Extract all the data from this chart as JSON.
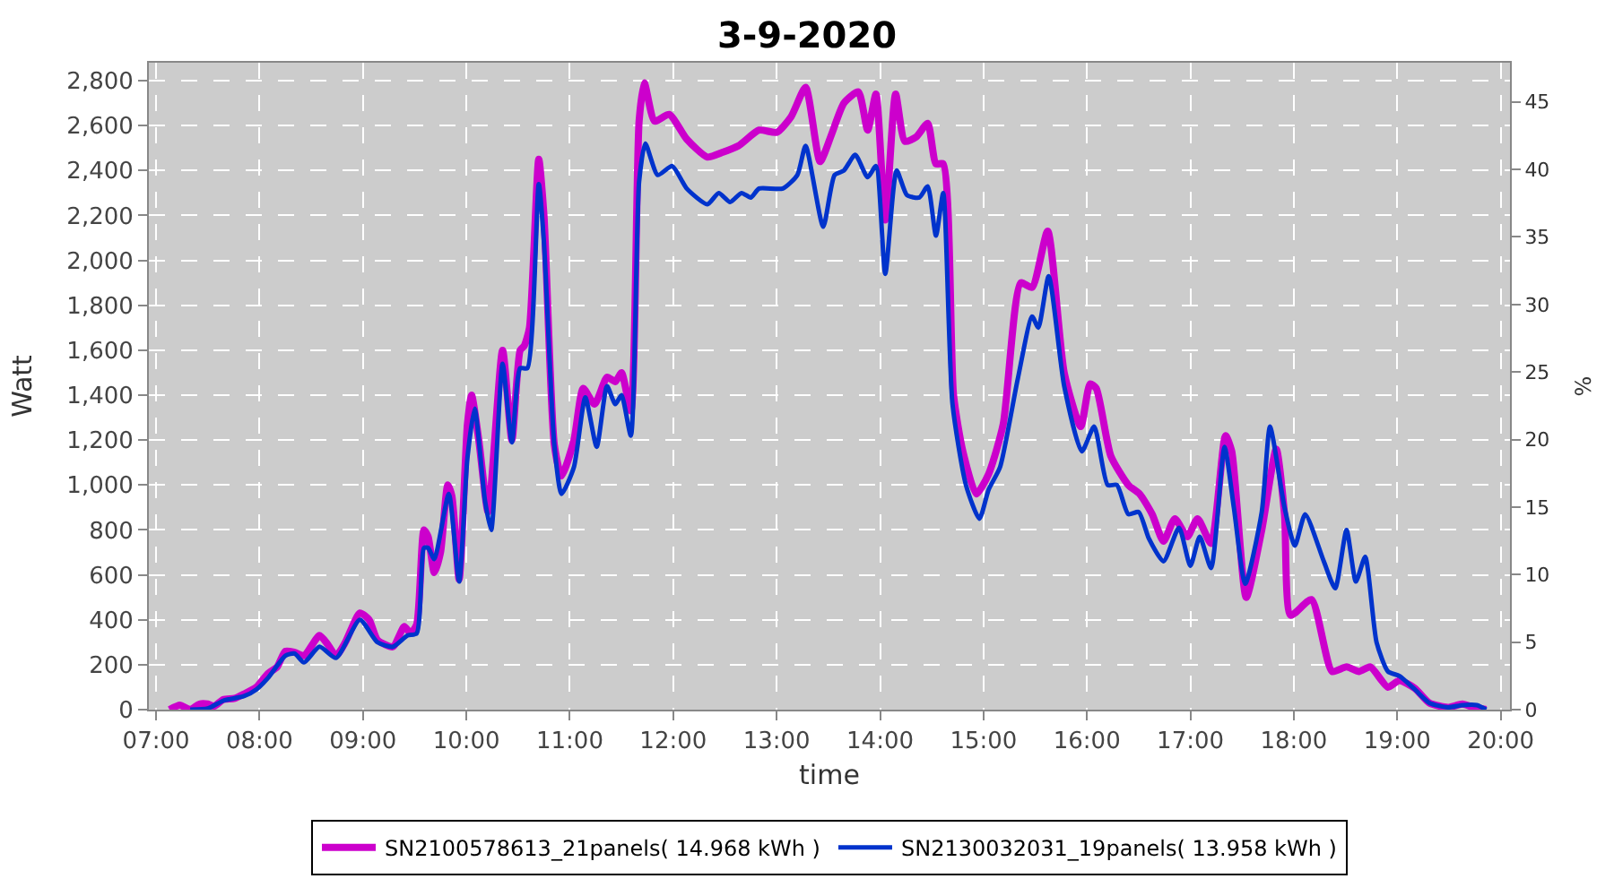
{
  "chart_data": {
    "type": "line",
    "title": "3-9-2020",
    "xlabel": "time",
    "ylabel": "Watt",
    "y2label": "%",
    "xlim": [
      6.93,
      20.09
    ],
    "xticks": [
      {
        "value": 7,
        "label": "07:00"
      },
      {
        "value": 8,
        "label": "08:00"
      },
      {
        "value": 9,
        "label": "09:00"
      },
      {
        "value": 10,
        "label": "10:00"
      },
      {
        "value": 11,
        "label": "11:00"
      },
      {
        "value": 12,
        "label": "12:00"
      },
      {
        "value": 13,
        "label": "13:00"
      },
      {
        "value": 14,
        "label": "14:00"
      },
      {
        "value": 15,
        "label": "15:00"
      },
      {
        "value": 16,
        "label": "16:00"
      },
      {
        "value": 17,
        "label": "17:00"
      },
      {
        "value": 18,
        "label": "18:00"
      },
      {
        "value": 19,
        "label": "19:00"
      },
      {
        "value": 20,
        "label": "20:00"
      }
    ],
    "ylim": [
      0,
      2880
    ],
    "yticks": [
      0,
      200,
      400,
      600,
      800,
      {
        "value": 1000,
        "label": "1,000"
      },
      {
        "value": 1200,
        "label": "1,200"
      },
      {
        "value": 1400,
        "label": "1,400"
      },
      {
        "value": 1600,
        "label": "1,600"
      },
      {
        "value": 1800,
        "label": "1,800"
      },
      {
        "value": 2000,
        "label": "2,000"
      },
      {
        "value": 2200,
        "label": "2,200"
      },
      {
        "value": 2400,
        "label": "2,400"
      },
      {
        "value": 2600,
        "label": "2,600"
      },
      {
        "value": 2800,
        "label": "2,800"
      }
    ],
    "y2lim": [
      0,
      47.9
    ],
    "y2ticks": [
      0,
      5,
      10,
      15,
      20,
      25,
      30,
      35,
      40,
      45
    ],
    "grid": true,
    "legend": "bottom",
    "line_style": "solid",
    "series": [
      {
        "name": "SN2100578613_21panels( 14.968 kWh )",
        "color": "#cc00cc",
        "x": [
          7.13,
          7.23,
          7.33,
          7.42,
          7.5,
          7.56,
          7.65,
          7.76,
          7.85,
          7.97,
          8.08,
          8.17,
          8.25,
          8.34,
          8.43,
          8.58,
          8.66,
          8.74,
          8.83,
          8.97,
          9.06,
          9.14,
          9.29,
          9.4,
          9.46,
          9.52,
          9.59,
          9.63,
          9.69,
          9.75,
          9.82,
          9.86,
          9.93,
          10.01,
          10.05,
          10.12,
          10.21,
          10.35,
          10.44,
          10.52,
          10.56,
          10.61,
          10.7,
          10.75,
          10.85,
          10.92,
          11.04,
          11.13,
          11.24,
          11.36,
          11.44,
          11.5,
          11.59,
          11.67,
          11.72,
          11.82,
          11.96,
          12.13,
          12.33,
          12.47,
          12.63,
          12.83,
          13.0,
          13.14,
          13.28,
          13.42,
          13.53,
          13.65,
          13.79,
          13.88,
          13.96,
          14.05,
          14.15,
          14.24,
          14.35,
          14.46,
          14.54,
          14.61,
          14.71,
          14.8,
          14.93,
          15.05,
          15.19,
          15.36,
          15.47,
          15.62,
          15.78,
          15.94,
          16.03,
          16.09,
          16.23,
          16.4,
          16.51,
          16.63,
          16.74,
          16.85,
          16.97,
          17.07,
          17.2,
          17.34,
          17.4,
          17.54,
          17.69,
          17.83,
          17.91,
          17.97,
          18.17,
          18.37,
          18.51,
          18.63,
          18.74,
          18.91,
          19.02,
          19.17,
          19.31,
          19.49,
          19.63,
          19.74,
          19.86
        ],
        "values": [
          0,
          20,
          0,
          25,
          25,
          15,
          45,
          50,
          70,
          100,
          160,
          190,
          260,
          255,
          240,
          330,
          290,
          240,
          300,
          430,
          400,
          310,
          280,
          370,
          340,
          380,
          800,
          770,
          610,
          700,
          1000,
          950,
          580,
          1270,
          1400,
          1200,
          880,
          1600,
          1200,
          1600,
          1620,
          1700,
          2450,
          2200,
          1180,
          1040,
          1200,
          1430,
          1360,
          1480,
          1460,
          1500,
          1330,
          2620,
          2790,
          2620,
          2650,
          2540,
          2460,
          2480,
          2510,
          2580,
          2570,
          2640,
          2770,
          2440,
          2560,
          2700,
          2750,
          2580,
          2740,
          2180,
          2740,
          2530,
          2550,
          2610,
          2430,
          2430,
          1400,
          1150,
          960,
          1050,
          1270,
          1900,
          1880,
          2130,
          1500,
          1260,
          1450,
          1430,
          1130,
          1000,
          960,
          870,
          750,
          850,
          770,
          850,
          740,
          1220,
          1150,
          500,
          800,
          1160,
          870,
          420,
          490,
          170,
          190,
          170,
          190,
          100,
          130,
          95,
          30,
          10,
          25,
          10,
          0
        ]
      },
      {
        "name": "SN2130032031_19panels( 13.958 kWh )",
        "color": "#0033cc",
        "x": [
          7.33,
          7.5,
          7.65,
          7.85,
          7.97,
          8.08,
          8.25,
          8.34,
          8.43,
          8.58,
          8.74,
          8.97,
          9.14,
          9.29,
          9.43,
          9.52,
          9.59,
          9.63,
          9.69,
          9.83,
          9.93,
          10.01,
          10.08,
          10.18,
          10.24,
          10.35,
          10.44,
          10.52,
          10.59,
          10.7,
          10.75,
          10.85,
          10.92,
          11.04,
          11.15,
          11.26,
          11.36,
          11.44,
          11.5,
          11.59,
          11.67,
          11.73,
          11.85,
          11.99,
          12.13,
          12.33,
          12.44,
          12.55,
          12.66,
          12.75,
          12.83,
          13.06,
          13.2,
          13.28,
          13.45,
          13.56,
          13.65,
          13.76,
          13.88,
          13.96,
          14.05,
          14.16,
          14.26,
          14.38,
          14.46,
          14.54,
          14.61,
          14.7,
          14.83,
          14.96,
          15.05,
          15.16,
          15.33,
          15.47,
          15.53,
          15.63,
          15.78,
          15.95,
          16.07,
          16.2,
          16.29,
          16.4,
          16.5,
          16.6,
          16.74,
          16.89,
          17.0,
          17.09,
          17.2,
          17.33,
          17.42,
          17.53,
          17.69,
          17.77,
          17.91,
          18.01,
          18.11,
          18.29,
          18.4,
          18.51,
          18.6,
          18.69,
          18.8,
          18.91,
          19.02,
          19.17,
          19.31,
          19.49,
          19.63,
          19.77,
          19.86
        ],
        "values": [
          0,
          5,
          40,
          60,
          90,
          140,
          240,
          250,
          210,
          280,
          230,
          400,
          300,
          280,
          330,
          340,
          720,
          720,
          670,
          960,
          570,
          1120,
          1340,
          930,
          800,
          1540,
          1190,
          1520,
          1520,
          2340,
          2080,
          1180,
          960,
          1080,
          1390,
          1170,
          1440,
          1360,
          1400,
          1220,
          2350,
          2520,
          2380,
          2420,
          2320,
          2250,
          2300,
          2260,
          2300,
          2280,
          2320,
          2320,
          2380,
          2510,
          2150,
          2380,
          2400,
          2470,
          2370,
          2420,
          1940,
          2400,
          2290,
          2280,
          2330,
          2110,
          2300,
          1360,
          1000,
          850,
          980,
          1080,
          1470,
          1750,
          1700,
          1930,
          1440,
          1150,
          1260,
          1000,
          1000,
          870,
          880,
          760,
          660,
          810,
          640,
          770,
          630,
          1170,
          900,
          560,
          880,
          1260,
          900,
          730,
          870,
          660,
          540,
          800,
          570,
          680,
          300,
          170,
          150,
          90,
          30,
          10,
          20,
          20,
          0
        ]
      }
    ]
  }
}
